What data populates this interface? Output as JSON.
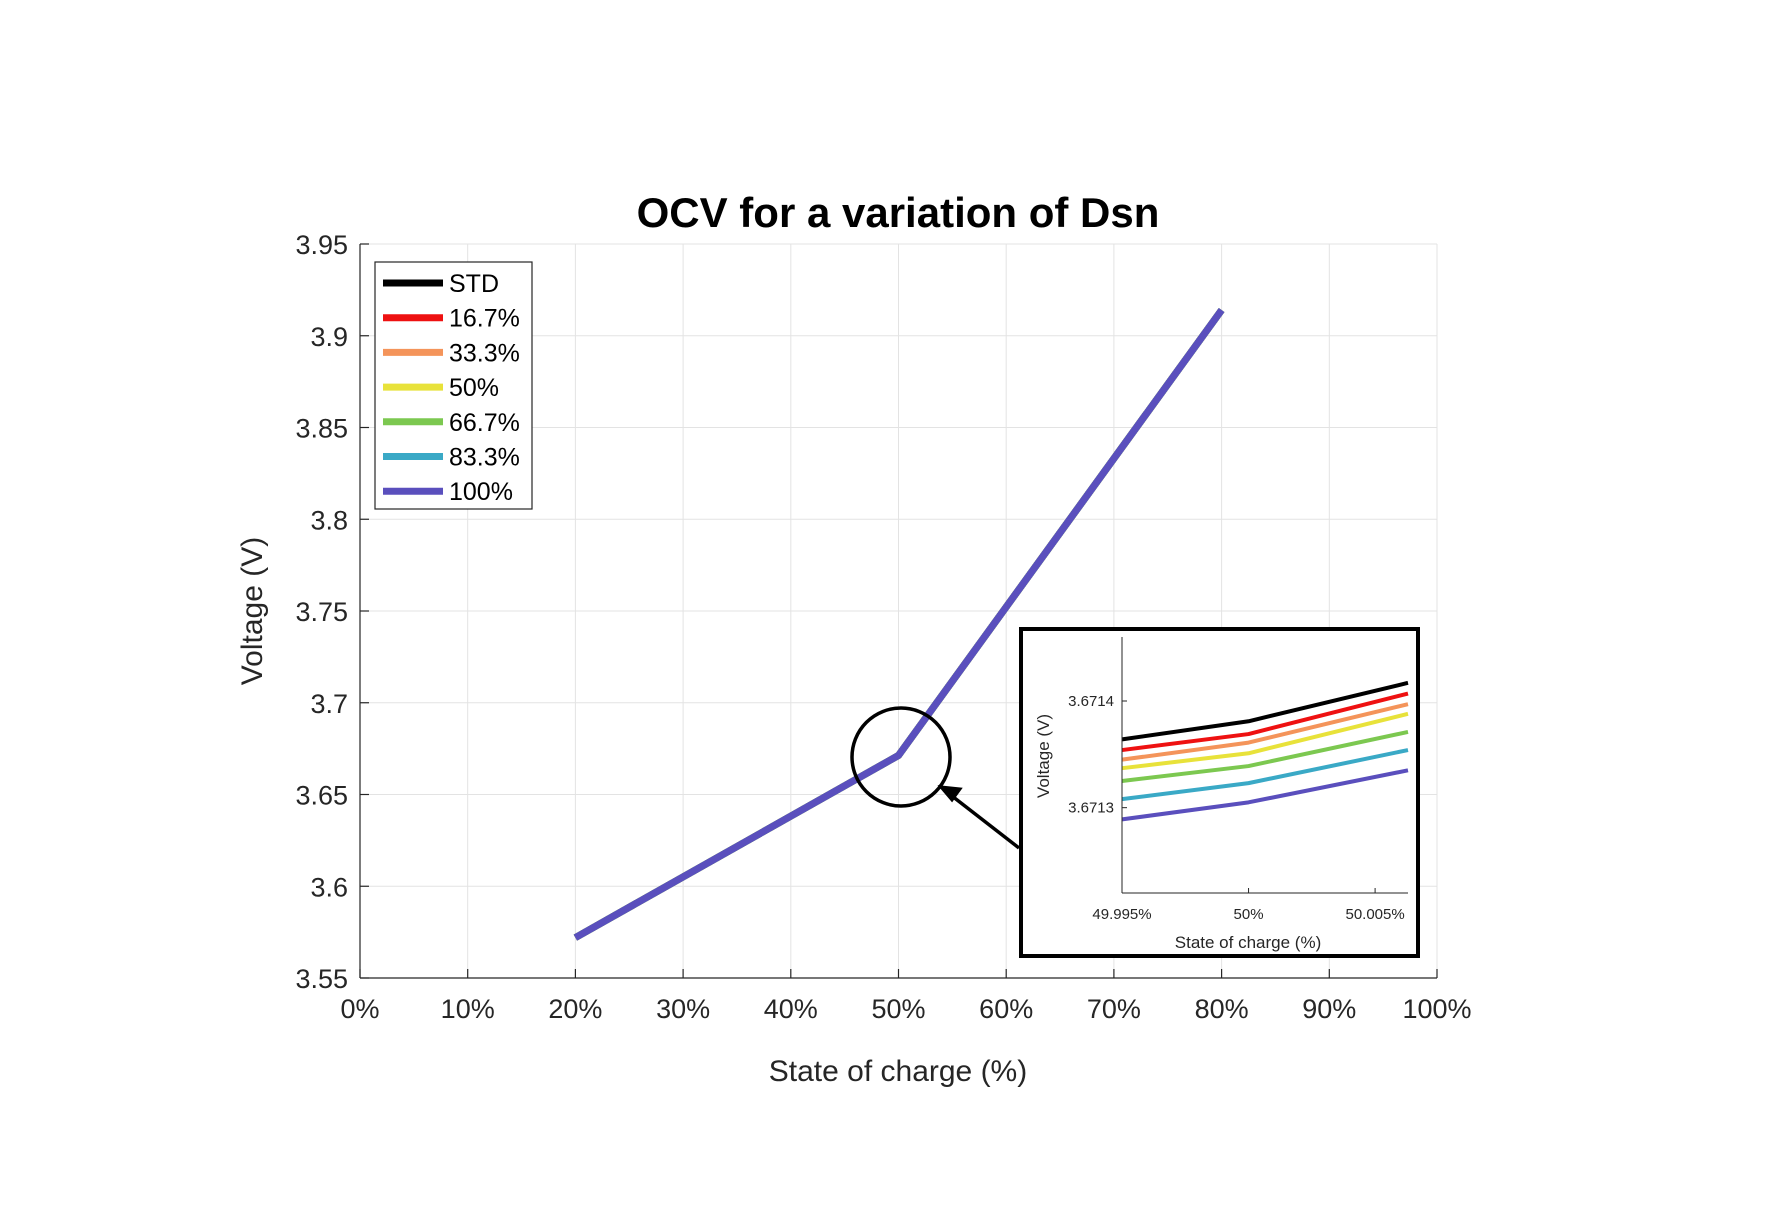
{
  "chart_data": {
    "type": "line",
    "title": "OCV for a variation of Dsn",
    "xlabel": "State of charge (%)",
    "ylabel": "Voltage (V)",
    "xlim": [
      0,
      100
    ],
    "ylim": [
      3.55,
      3.95
    ],
    "x_ticks": [
      0,
      10,
      20,
      30,
      40,
      50,
      60,
      70,
      80,
      90,
      100
    ],
    "x_tick_labels": [
      "0%",
      "10%",
      "20%",
      "30%",
      "40%",
      "50%",
      "60%",
      "70%",
      "80%",
      "90%",
      "100%"
    ],
    "y_ticks": [
      3.55,
      3.6,
      3.65,
      3.7,
      3.75,
      3.8,
      3.85,
      3.9,
      3.95
    ],
    "y_tick_labels": [
      "3.55",
      "3.6",
      "3.65",
      "3.7",
      "3.75",
      "3.8",
      "3.85",
      "3.9",
      "3.95"
    ],
    "grid": true,
    "legend_position": "top-left",
    "series": [
      {
        "name": "STD",
        "color": "#000000",
        "x": [
          20,
          50,
          80
        ],
        "y": [
          3.572,
          3.6713,
          3.914
        ]
      },
      {
        "name": "16.7%",
        "color": "#ee1111",
        "x": [
          20,
          50,
          80
        ],
        "y": [
          3.572,
          3.6713,
          3.914
        ]
      },
      {
        "name": "33.3%",
        "color": "#f4945a",
        "x": [
          20,
          50,
          80
        ],
        "y": [
          3.572,
          3.6713,
          3.914
        ]
      },
      {
        "name": "50%",
        "color": "#e8e23a",
        "x": [
          20,
          50,
          80
        ],
        "y": [
          3.572,
          3.6713,
          3.914
        ]
      },
      {
        "name": "66.7%",
        "color": "#7cc850",
        "x": [
          20,
          50,
          80
        ],
        "y": [
          3.572,
          3.6713,
          3.914
        ]
      },
      {
        "name": "83.3%",
        "color": "#3aa9c6",
        "x": [
          20,
          50,
          80
        ],
        "y": [
          3.572,
          3.6713,
          3.914
        ]
      },
      {
        "name": "100%",
        "color": "#5a4fbd",
        "x": [
          20,
          50,
          80
        ],
        "y": [
          3.572,
          3.6713,
          3.914
        ]
      }
    ],
    "inset": {
      "type": "line",
      "xlabel": "State of charge (%)",
      "ylabel": "Voltage (V)",
      "xlim": [
        49.995,
        50.0063
      ],
      "ylim": [
        3.67122,
        3.67146
      ],
      "x_ticks": [
        49.995,
        50,
        50.005
      ],
      "x_tick_labels": [
        "49.995%",
        "50%",
        "50.005%"
      ],
      "y_ticks": [
        3.6713,
        3.6714
      ],
      "y_tick_labels": [
        "3.6713",
        "3.6714"
      ],
      "grid": false,
      "series": [
        {
          "name": "STD",
          "color": "#000000",
          "x": [
            49.995,
            50,
            50.0063
          ],
          "y": [
            3.671364,
            3.671381,
            3.671417
          ]
        },
        {
          "name": "16.7%",
          "color": "#ee1111",
          "x": [
            49.995,
            50,
            50.0063
          ],
          "y": [
            3.671354,
            3.671369,
            3.671407
          ]
        },
        {
          "name": "33.3%",
          "color": "#f4945a",
          "x": [
            49.995,
            50,
            50.0063
          ],
          "y": [
            3.671345,
            3.671361,
            3.671397
          ]
        },
        {
          "name": "50%",
          "color": "#e8e23a",
          "x": [
            49.995,
            50,
            50.0063
          ],
          "y": [
            3.671337,
            3.671351,
            3.671388
          ]
        },
        {
          "name": "66.7%",
          "color": "#7cc850",
          "x": [
            49.995,
            50,
            50.0063
          ],
          "y": [
            3.671325,
            3.671339,
            3.671371
          ]
        },
        {
          "name": "83.3%",
          "color": "#3aa9c6",
          "x": [
            49.995,
            50,
            50.0063
          ],
          "y": [
            3.671308,
            3.671323,
            3.671354
          ]
        },
        {
          "name": "100%",
          "color": "#5a4fbd",
          "x": [
            49.995,
            50,
            50.0063
          ],
          "y": [
            3.671289,
            3.671305,
            3.671335
          ]
        }
      ]
    }
  }
}
